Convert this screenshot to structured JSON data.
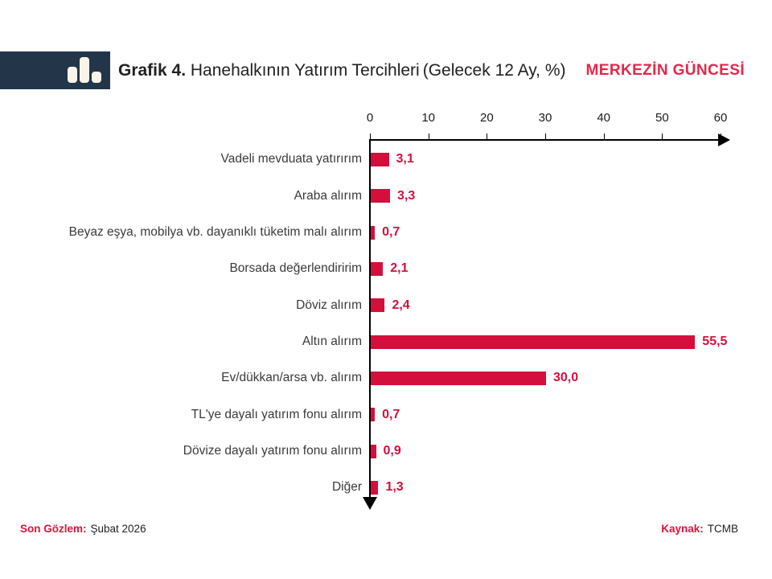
{
  "header": {
    "title_bold": "Grafik 4.",
    "title_rest": "Hanehalkının Yatırım Tercihleri",
    "title_paren": "(Gelecek 12 Ay, %)",
    "brand": "MERKEZİN GÜNCESİ"
  },
  "footer": {
    "left_label": "Son Gözlem:",
    "left_value": "Şubat 2026",
    "right_label": "Kaynak:",
    "right_value": "TCMB"
  },
  "colors": {
    "bar": "#D40F3C",
    "value_label": "#D40F3C",
    "brand_red": "#E4274B",
    "footer_red": "#E4113E",
    "logo_navy": "#233649",
    "logo_cream": "#F8F4E9",
    "axis_black": "#000000"
  },
  "chart_data": {
    "type": "bar",
    "orientation": "horizontal",
    "title": "Grafik 4. Hanehalkının Yatırım Tercihleri (Gelecek 12 Ay, %)",
    "xlabel": "",
    "ylabel": "",
    "xlim": [
      0,
      60
    ],
    "x_ticks": [
      0,
      10,
      20,
      30,
      40,
      50,
      60
    ],
    "grid": false,
    "legend": false,
    "categories": [
      "Vadeli mevduata yatırırım",
      "Araba alırım",
      "Beyaz eşya, mobilya vb. dayanıklı tüketim malı alırım",
      "Borsada değerlendiririm",
      "Döviz alırım",
      "Altın alırım",
      "Ev/dükkan/arsa vb. alırım",
      "TL'ye dayalı yatırım fonu alırım",
      "Dövize dayalı yatırım fonu alırım",
      "Diğer"
    ],
    "values": [
      3.1,
      3.3,
      0.7,
      2.1,
      2.4,
      55.5,
      30.0,
      0.7,
      0.9,
      1.3
    ],
    "value_labels": [
      "3,1",
      "3,3",
      "0,7",
      "2,1",
      "2,4",
      "55,5",
      "30,0",
      "0,7",
      "0,9",
      "1,3"
    ]
  }
}
